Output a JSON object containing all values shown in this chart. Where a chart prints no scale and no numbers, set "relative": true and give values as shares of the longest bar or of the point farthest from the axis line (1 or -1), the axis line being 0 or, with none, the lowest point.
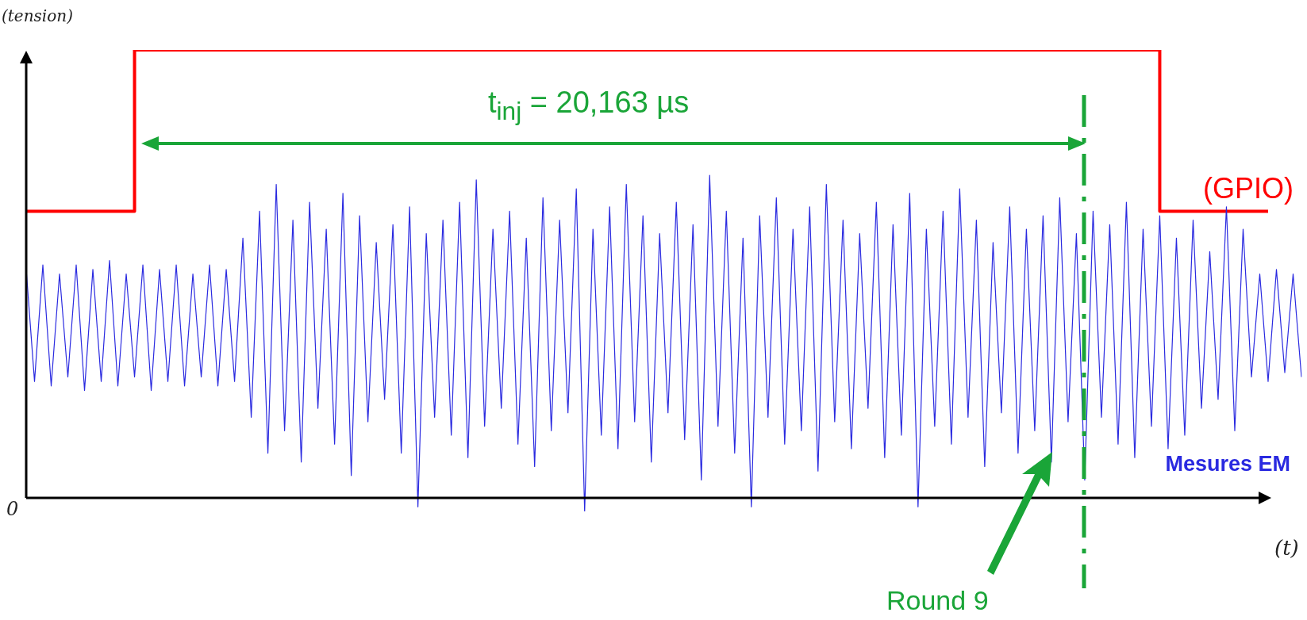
{
  "chart_data": {
    "type": "line",
    "relative": true,
    "ylabel": "(tension)",
    "xlabel": "(t)",
    "legend": false,
    "grid": false,
    "marker": "none",
    "line_style": "solid",
    "annotations": [
      "0",
      "t$_{inj}$ = 20,163 µs",
      "Round 9"
    ],
    "categories": [
      null,
      null,
      null,
      null,
      null,
      null,
      null,
      null,
      null,
      null,
      null,
      null,
      null,
      null,
      null,
      null,
      null,
      null,
      null,
      null,
      null,
      null,
      null,
      null,
      null,
      null,
      null,
      null,
      null,
      null,
      null,
      null,
      null,
      null,
      null,
      null,
      null,
      null,
      null,
      null,
      null,
      null,
      null,
      null,
      null,
      null,
      null,
      null,
      null,
      null,
      null,
      null,
      null,
      null,
      null,
      null,
      null,
      null,
      null,
      null,
      null,
      null,
      null,
      null,
      null,
      null,
      null,
      null,
      null,
      null,
      null,
      null,
      null,
      null,
      null,
      null,
      null,
      null,
      null,
      null,
      null,
      null,
      null,
      null,
      null,
      null,
      null,
      null,
      null,
      null,
      null,
      null,
      null,
      null,
      null,
      null,
      null,
      null,
      null,
      null,
      null,
      null,
      null,
      null,
      null,
      null,
      null,
      null,
      null,
      null,
      null,
      null,
      null,
      null,
      null,
      null,
      null,
      null,
      null,
      null,
      null,
      null,
      null,
      null,
      null,
      null,
      null,
      null,
      null,
      null,
      null,
      null,
      null,
      null,
      null,
      null,
      null,
      null,
      null,
      null,
      null,
      null,
      null,
      null,
      null,
      null,
      null,
      null,
      null,
      null,
      null,
      null,
      null,
      null
    ],
    "series": [
      {
        "name": "Mesures EM",
        "color": "#2a2ae0",
        "values": [
          0.51,
          0.26,
          0.52,
          0.25,
          0.5,
          0.27,
          0.52,
          0.24,
          0.51,
          0.26,
          0.53,
          0.25,
          0.5,
          0.27,
          0.52,
          0.24,
          0.51,
          0.26,
          0.52,
          0.25,
          0.5,
          0.27,
          0.52,
          0.25,
          0.51,
          0.26,
          0.58,
          0.18,
          0.64,
          0.1,
          0.7,
          0.15,
          0.62,
          0.08,
          0.66,
          0.2,
          0.6,
          0.12,
          0.68,
          0.05,
          0.63,
          0.17,
          0.57,
          0.22,
          0.61,
          0.1,
          0.65,
          -0.02,
          0.59,
          0.18,
          0.62,
          0.14,
          0.66,
          0.09,
          0.71,
          0.16,
          0.6,
          0.2,
          0.64,
          0.12,
          0.58,
          0.07,
          0.67,
          0.15,
          0.62,
          0.19,
          0.69,
          -0.03,
          0.6,
          0.14,
          0.65,
          0.11,
          0.7,
          0.17,
          0.63,
          0.08,
          0.59,
          0.19,
          0.66,
          0.13,
          0.61,
          0.04,
          0.72,
          0.16,
          0.64,
          0.1,
          0.58,
          -0.02,
          0.63,
          0.18,
          0.67,
          0.12,
          0.6,
          0.15,
          0.65,
          0.06,
          0.7,
          0.17,
          0.62,
          0.11,
          0.59,
          0.2,
          0.66,
          0.09,
          0.61,
          0.14,
          0.68,
          -0.02,
          0.6,
          0.16,
          0.64,
          0.12,
          0.69,
          0.18,
          0.62,
          0.07,
          0.57,
          0.19,
          0.65,
          0.1,
          0.6,
          0.15,
          0.63,
          0.08,
          0.67,
          0.17,
          0.59,
          0.04,
          0.64,
          0.18,
          0.61,
          0.12,
          0.66,
          0.09,
          0.6,
          0.16,
          0.63,
          0.11,
          0.58,
          0.14,
          0.62,
          0.2,
          0.55,
          0.22,
          0.65,
          0.15,
          0.6,
          0.27,
          0.5,
          0.26,
          0.51,
          0.28,
          0.5,
          0.27
        ]
      },
      {
        "name": "(GPIO)",
        "type": "step",
        "color": "#ff0000",
        "values": [
          0.64,
          0.64,
          0.64,
          0.64,
          0.64,
          0.64,
          0.64,
          0.64,
          0.64,
          0.64,
          0.64,
          0.64,
          0.64,
          0.64,
          1,
          1,
          1,
          1,
          1,
          1,
          1,
          1,
          1,
          1,
          1,
          1,
          1,
          1,
          1,
          1,
          1,
          1,
          1,
          1,
          1,
          1,
          1,
          1,
          1,
          1,
          1,
          1,
          1,
          1,
          1,
          1,
          1,
          1,
          1,
          1,
          1,
          1,
          1,
          1,
          1,
          1,
          1,
          1,
          1,
          1,
          1,
          1,
          1,
          1,
          1,
          1,
          1,
          1,
          1,
          1,
          1,
          1,
          1,
          1,
          1,
          1,
          1,
          1,
          1,
          1,
          1,
          1,
          1,
          1,
          1,
          1,
          1,
          1,
          1,
          1,
          1,
          1,
          1,
          1,
          1,
          1,
          1,
          1,
          1,
          1,
          1,
          1,
          1,
          1,
          1,
          1,
          1,
          1,
          1,
          1,
          1,
          1,
          1,
          1,
          1,
          1,
          1,
          1,
          1,
          1,
          1,
          1,
          1,
          1,
          1,
          1,
          1,
          1,
          1,
          1,
          1,
          1,
          1,
          1,
          1,
          1,
          1,
          0.64,
          0.64,
          0.64,
          0.64,
          0.64,
          0.64,
          0.64,
          0.64,
          0.64,
          0.64,
          0.64,
          0.64,
          0.64,
          null,
          null,
          null,
          null
        ]
      }
    ]
  }
}
